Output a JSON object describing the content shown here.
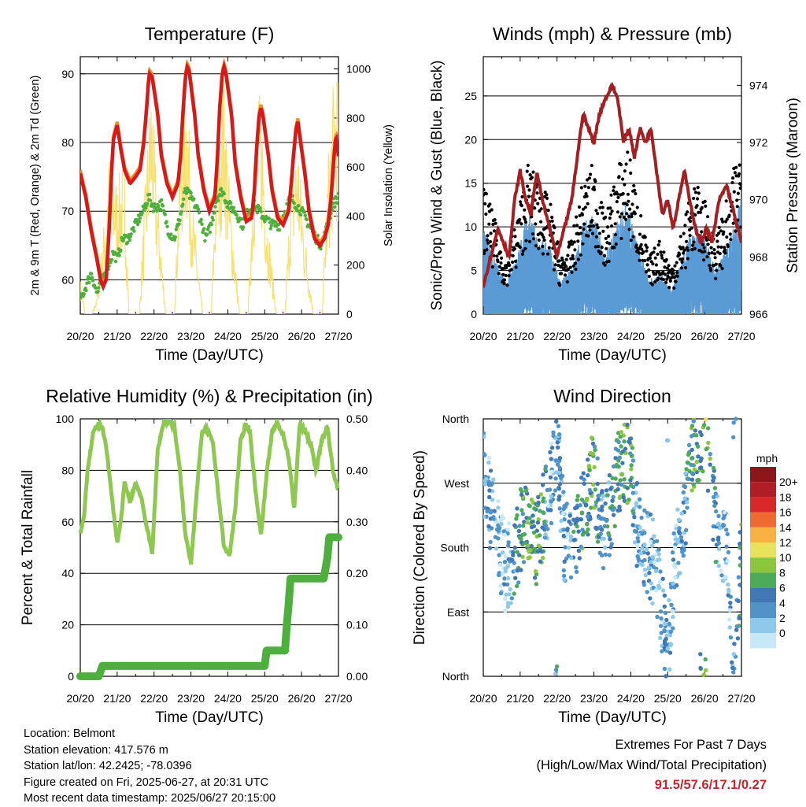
{
  "info": {
    "location": "Location: Belmont",
    "elevation": "Station elevation: 417.576 m",
    "latlon": "Station lat/lon: 42.2425; -78.0396",
    "created": "Figure created on Fri, 2025-06-27, at 20:31 UTC",
    "recent": "Most recent data timestamp: 2025/06/27 20:15:00"
  },
  "extremes": {
    "title": "Extremes For Past 7 Days",
    "subtitle": "(High/Low/Max Wind/Total Precipitation)",
    "values": "91.5/57.6/17.1/0.27"
  },
  "colors": {
    "temp": "#d7191c",
    "temp9m": "#f08c2a",
    "dewpoint": "#4daf3c",
    "solar": "#f7dd5f",
    "wind": "#5b9bd5",
    "gust": "#000000",
    "pressure": "#a51e22",
    "rh": "#8ec851",
    "precip": "#4daf3c"
  },
  "chart_data": [
    {
      "type": "line",
      "title": "Temperature (F)",
      "xlabel": "Time (Day/UTC)",
      "ylabel": "2m & 9m T (Red, Orange) & 2m Td (Green)",
      "y2label": "Solar Insolation (Yellow)",
      "xticks": [
        "20/20",
        "21/20",
        "22/20",
        "23/20",
        "24/20",
        "25/20",
        "26/20",
        "27/20"
      ],
      "xlim": [
        0,
        7
      ],
      "ylim": [
        55,
        92.5
      ],
      "yticks": [
        60,
        70,
        80,
        90
      ],
      "y2lim": [
        0,
        1050
      ],
      "y2ticks": [
        0,
        200,
        400,
        600,
        800,
        1000
      ],
      "grid": true,
      "series": [
        {
          "role": "temp",
          "x": [
            0,
            0.15,
            0.3,
            0.45,
            0.55,
            0.62,
            0.7,
            0.78,
            0.85,
            0.9,
            1.0,
            1.1,
            1.2,
            1.35,
            1.5,
            1.62,
            1.72,
            1.8,
            1.85,
            1.88,
            1.95,
            2.1,
            2.2,
            2.35,
            2.5,
            2.65,
            2.72,
            2.78,
            2.85,
            2.9,
            2.95,
            3.1,
            3.2,
            3.35,
            3.5,
            3.65,
            3.72,
            3.78,
            3.85,
            3.9,
            3.95,
            4.1,
            4.2,
            4.35,
            4.5,
            4.65,
            4.72,
            4.78,
            4.85,
            4.9,
            4.95,
            5.1,
            5.2,
            5.35,
            5.5,
            5.65,
            5.72,
            5.78,
            5.85,
            5.9,
            5.95,
            6.1,
            6.2,
            6.35,
            6.5,
            6.62,
            6.72,
            6.8,
            6.88,
            6.93,
            7.0
          ],
          "y": [
            75.5,
            72,
            67,
            63,
            60,
            59,
            60,
            67,
            76,
            80.5,
            82.5,
            79,
            76,
            74,
            75,
            76,
            80,
            85,
            89,
            90,
            89.5,
            84,
            78,
            74,
            72,
            74,
            78,
            84,
            89.5,
            91,
            90.5,
            84,
            78,
            73,
            70,
            72,
            78,
            85,
            90,
            91,
            90,
            84,
            77,
            72,
            68.5,
            69,
            73,
            79,
            84,
            85,
            84,
            78,
            73,
            69,
            68,
            70,
            74,
            78,
            82,
            83,
            81,
            75,
            70,
            66,
            65,
            66,
            68,
            72,
            78,
            81,
            78
          ]
        },
        {
          "role": "dewpoint",
          "x": [
            0,
            0.15,
            0.3,
            0.45,
            0.6,
            0.75,
            0.9,
            1.0,
            1.15,
            1.3,
            1.5,
            1.7,
            1.85,
            2.0,
            2.2,
            2.4,
            2.55,
            2.7,
            2.85,
            3.0,
            3.2,
            3.4,
            3.55,
            3.7,
            3.85,
            4.0,
            4.2,
            4.4,
            4.55,
            4.7,
            4.85,
            5.0,
            5.2,
            5.4,
            5.55,
            5.7,
            5.85,
            6.0,
            6.2,
            6.4,
            6.55,
            6.7,
            6.85,
            7.0
          ],
          "y": [
            57,
            59,
            61,
            58,
            60,
            62,
            64,
            63,
            66,
            66,
            68,
            70,
            72,
            70.5,
            71,
            67,
            66,
            69,
            73,
            72,
            70,
            66,
            68,
            72,
            73,
            71,
            70,
            68,
            70,
            71,
            70,
            69,
            68,
            68,
            70,
            72,
            71,
            70,
            68,
            66,
            65,
            68,
            71,
            72
          ]
        },
        {
          "role": "solar",
          "x": [
            0,
            0.06,
            0.12,
            0.32,
            0.45,
            0.6,
            0.8,
            1.0,
            1.2,
            1.32,
            1.6,
            1.78,
            1.92,
            2.05,
            2.32,
            2.55,
            2.72,
            2.88,
            3.02,
            3.32,
            3.55,
            3.72,
            3.9,
            4.05,
            4.32,
            4.55,
            4.72,
            4.9,
            5.05,
            5.32,
            5.55,
            5.72,
            5.9,
            6.05,
            6.32,
            6.55,
            6.72,
            6.88,
            6.98,
            7.0
          ],
          "y": [
            150,
            100,
            0,
            0,
            80,
            300,
            700,
            550,
            650,
            0,
            0,
            600,
            1000,
            600,
            0,
            0,
            800,
            1020,
            500,
            0,
            0,
            820,
            1000,
            520,
            0,
            0,
            780,
            950,
            450,
            0,
            0,
            600,
            750,
            400,
            0,
            0,
            650,
            1000,
            1050,
            600
          ]
        }
      ]
    },
    {
      "type": "scatter",
      "title": "Winds (mph) & Pressure (mb)",
      "xlabel": "Time (Day/UTC)",
      "ylabel": "Sonic/Prop Wind & Gust (Blue, Black)",
      "y2label": "Station Pressure (Maroon)",
      "xticks": [
        "20/20",
        "21/20",
        "22/20",
        "23/20",
        "24/20",
        "25/20",
        "26/20",
        "27/20"
      ],
      "xlim": [
        0,
        7
      ],
      "ylim": [
        0,
        29.5
      ],
      "yticks": [
        0,
        5,
        10,
        15,
        20,
        25
      ],
      "y2lim": [
        966,
        975
      ],
      "y2ticks": [
        966,
        968,
        970,
        972,
        974
      ],
      "grid": true,
      "series": [
        {
          "role": "wind",
          "x": [
            0,
            0.3,
            0.6,
            0.9,
            1.2,
            1.5,
            1.8,
            2.1,
            2.4,
            2.7,
            3.0,
            3.3,
            3.6,
            3.9,
            4.2,
            4.5,
            4.8,
            5.1,
            5.4,
            5.7,
            6.0,
            6.3,
            6.6,
            6.9,
            7.0
          ],
          "y": [
            8,
            5,
            3,
            5,
            9,
            7,
            6,
            3,
            4,
            8,
            9,
            5,
            8,
            10,
            6,
            3,
            4,
            2,
            5,
            8,
            7,
            4,
            6,
            9,
            11
          ]
        },
        {
          "role": "gust",
          "x": [
            0,
            0.3,
            0.6,
            0.9,
            1.2,
            1.5,
            1.8,
            2.1,
            2.4,
            2.7,
            3.0,
            3.3,
            3.6,
            3.9,
            4.2,
            4.5,
            4.8,
            5.1,
            5.4,
            5.7,
            6.0,
            6.3,
            6.6,
            6.9,
            7.0
          ],
          "y": [
            14,
            10,
            6,
            10,
            16,
            14,
            12,
            6,
            8,
            14,
            16,
            10,
            15,
            18,
            12,
            6,
            8,
            5,
            9,
            14,
            12,
            8,
            12,
            17,
            20
          ]
        },
        {
          "role": "pressure",
          "x": [
            0,
            0.2,
            0.4,
            0.55,
            0.7,
            0.85,
            1.0,
            1.15,
            1.3,
            1.45,
            1.6,
            1.8,
            2.0,
            2.2,
            2.4,
            2.55,
            2.7,
            2.85,
            3.0,
            3.15,
            3.3,
            3.5,
            3.65,
            3.8,
            3.95,
            4.1,
            4.25,
            4.4,
            4.55,
            4.7,
            4.85,
            5.0,
            5.15,
            5.3,
            5.45,
            5.6,
            5.75,
            5.9,
            6.05,
            6.2,
            6.4,
            6.6,
            6.8,
            7.0
          ],
          "y": [
            967,
            968,
            969,
            968.5,
            968,
            970,
            971,
            970,
            969.5,
            971,
            970,
            969,
            968,
            969,
            970,
            971.5,
            973,
            972.5,
            972,
            973,
            973.5,
            974,
            973.5,
            972,
            972.5,
            971.5,
            972.5,
            972,
            972.5,
            971,
            969.5,
            970,
            969,
            970,
            971,
            970,
            969,
            968.5,
            969,
            968.5,
            970,
            970.5,
            969.5,
            968.5
          ]
        }
      ]
    },
    {
      "type": "line",
      "title": "Relative Humidity (%) & Precipitation (in)",
      "xlabel": "Time (Day/UTC)",
      "ylabel": "Percent & Total Rainfall",
      "xticks": [
        "20/20",
        "21/20",
        "22/20",
        "23/20",
        "24/20",
        "25/20",
        "26/20",
        "27/20"
      ],
      "xlim": [
        0,
        7
      ],
      "ylim": [
        0,
        100
      ],
      "yticks": [
        0,
        20,
        40,
        60,
        80,
        100
      ],
      "y2lim": [
        0,
        0.5
      ],
      "y2ticks": [
        "0.00",
        "0.10",
        "0.20",
        "0.30",
        "0.40",
        "0.50"
      ],
      "grid": true,
      "series": [
        {
          "role": "rh",
          "x": [
            0,
            0.1,
            0.2,
            0.35,
            0.5,
            0.6,
            0.7,
            0.85,
            1.0,
            1.1,
            1.2,
            1.35,
            1.5,
            1.65,
            1.8,
            1.95,
            2.1,
            2.25,
            2.4,
            2.55,
            2.7,
            2.85,
            3.0,
            3.15,
            3.3,
            3.45,
            3.6,
            3.75,
            3.9,
            4.05,
            4.2,
            4.35,
            4.5,
            4.6,
            4.75,
            4.9,
            5.05,
            5.2,
            5.35,
            5.5,
            5.65,
            5.8,
            5.95,
            6.1,
            6.25,
            6.4,
            6.55,
            6.7,
            6.85,
            7.0
          ],
          "y": [
            55,
            62,
            80,
            95,
            98,
            96,
            90,
            70,
            52,
            60,
            75,
            68,
            75,
            70,
            58,
            48,
            88,
            98,
            99,
            97,
            80,
            55,
            44,
            70,
            95,
            96,
            90,
            70,
            50,
            47,
            65,
            92,
            98,
            95,
            72,
            55,
            78,
            95,
            98,
            94,
            85,
            65,
            98,
            95,
            90,
            80,
            92,
            97,
            80,
            72
          ]
        },
        {
          "role": "precip",
          "x": [
            0,
            0.5,
            0.55,
            0.6,
            5.0,
            5.05,
            5.55,
            5.6,
            5.65,
            5.7,
            6.6,
            6.65,
            6.7,
            6.75,
            7.0
          ],
          "y": [
            0.0,
            0.0,
            0.01,
            0.02,
            0.02,
            0.05,
            0.05,
            0.1,
            0.14,
            0.19,
            0.19,
            0.21,
            0.23,
            0.27,
            0.27
          ]
        }
      ]
    },
    {
      "type": "scatter",
      "title": "Wind Direction",
      "xlabel": "Time (Day/UTC)",
      "ylabel": "Direction (Colored By Speed)",
      "xticks": [
        "20/20",
        "21/20",
        "22/20",
        "23/20",
        "24/20",
        "25/20",
        "26/20",
        "27/20"
      ],
      "xlim": [
        0,
        7
      ],
      "ylim": [
        0,
        360
      ],
      "yticks": [
        "North",
        "East",
        "South",
        "West",
        "North"
      ],
      "grid": true,
      "legend": {
        "title": "mph",
        "placement": "right",
        "labels": [
          "0",
          "2",
          "4",
          "6",
          "8",
          "10",
          "12",
          "14",
          "16",
          "18",
          "20+"
        ],
        "colors": [
          "#c6e8f7",
          "#8cc9ea",
          "#4f93c9",
          "#3f78b5",
          "#4daa5b",
          "#8cc63f",
          "#e7e35a",
          "#f7b041",
          "#ee6a30",
          "#d7282a",
          "#b01d25",
          "#8e161b"
        ]
      },
      "series": [
        {
          "role": "direction",
          "x": [
            0.1,
            0.2,
            0.4,
            0.6,
            0.9,
            1.0,
            1.2,
            1.4,
            1.6,
            1.8,
            2.0,
            2.2,
            2.4,
            2.6,
            2.8,
            3.0,
            3.2,
            3.4,
            3.6,
            3.8,
            4.0,
            4.2,
            4.4,
            4.6,
            4.8,
            5.0,
            5.2,
            5.4,
            5.6,
            5.8,
            6.0,
            6.2,
            6.4,
            6.6,
            6.8,
            7.0
          ],
          "y": [
            280,
            230,
            190,
            150,
            170,
            200,
            230,
            175,
            220,
            250,
            330,
            190,
            180,
            205,
            250,
            290,
            200,
            220,
            270,
            310,
            280,
            200,
            180,
            160,
            110,
            20,
            170,
            210,
            280,
            330,
            340,
            240,
            200,
            180,
            10,
            180
          ],
          "s": [
            4,
            3,
            3,
            2,
            6,
            6,
            8,
            8,
            7,
            3,
            5,
            3,
            4,
            6,
            7,
            8,
            4,
            5,
            6,
            8,
            7,
            3,
            4,
            3,
            2,
            5,
            2,
            4,
            6,
            8,
            9,
            6,
            4,
            3,
            4,
            9
          ]
        }
      ]
    }
  ]
}
